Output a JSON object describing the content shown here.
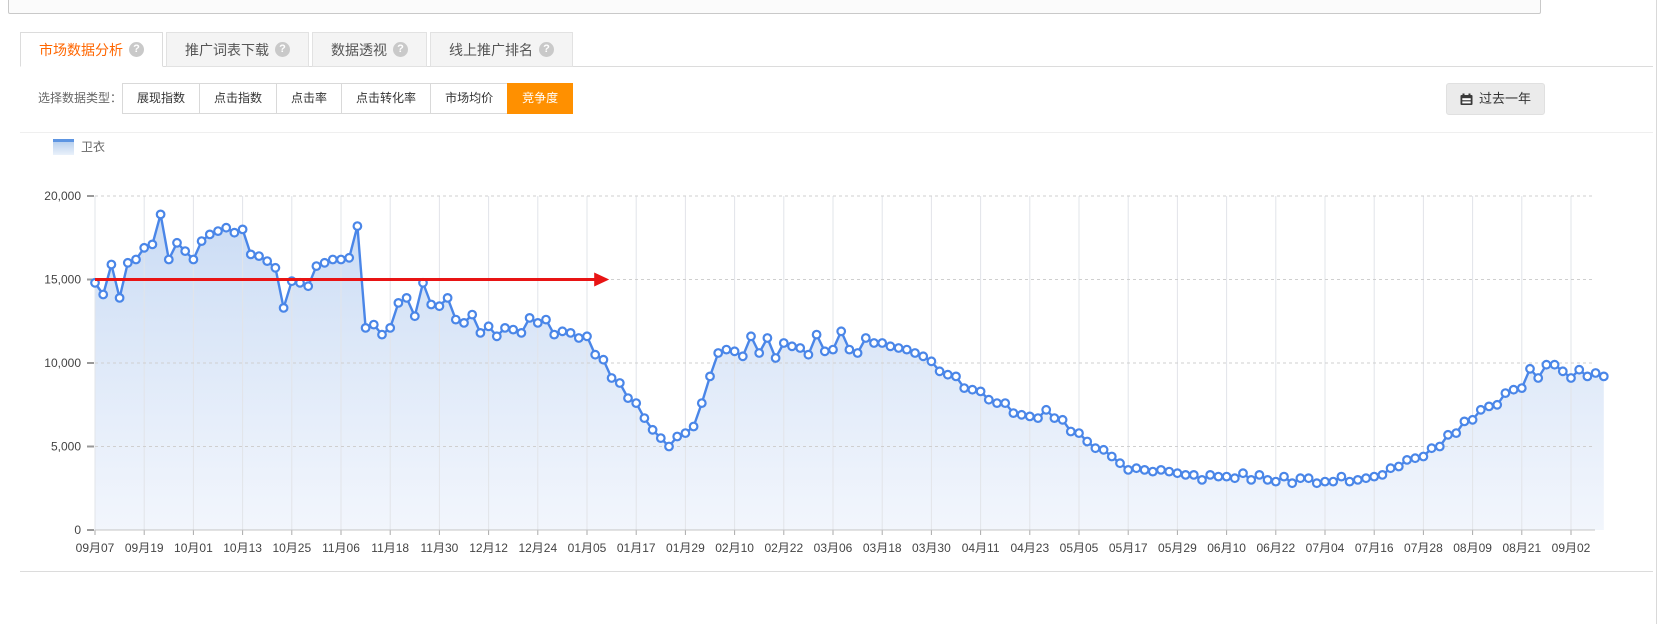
{
  "tabs": [
    {
      "label": "市场数据分析",
      "active": true
    },
    {
      "label": "推广词表下载",
      "active": false
    },
    {
      "label": "数据透视",
      "active": false
    },
    {
      "label": "线上推广排名",
      "active": false
    }
  ],
  "icons": {
    "help": "?"
  },
  "toolbar": {
    "label": "选择数据类型：",
    "buttons": [
      "展现指数",
      "点击指数",
      "点击率",
      "点击转化率",
      "市场均价",
      "竞争度"
    ],
    "active_button": "竞争度",
    "range_button": "过去一年"
  },
  "legend": {
    "series": "卫衣"
  },
  "colors": {
    "tab_active_text": "#ff6600",
    "active_button_bg": "#ff9000",
    "line": "#4a86e8",
    "area_top": "#b4cdf0",
    "area_bottom": "#e7eefa",
    "annotation_red": "#e81414",
    "grid_vertical": "#e2e4e9",
    "grid_horizontal_dashed": "#cfcfcf",
    "axis_text": "#444444"
  },
  "chart_data": {
    "type": "area",
    "title": "",
    "xlabel": "",
    "ylabel": "",
    "ylim": [
      0,
      20000
    ],
    "y_ticks": [
      0,
      5000,
      10000,
      15000,
      20000
    ],
    "y_tick_labels": [
      "0",
      "5,000",
      "10,000",
      "15,000",
      "20,000"
    ],
    "x_tick_labels": [
      "09月07",
      "09月19",
      "10月01",
      "10月13",
      "10月25",
      "11月06",
      "11月18",
      "11月30",
      "12月12",
      "12月24",
      "01月05",
      "01月17",
      "01月29",
      "02月10",
      "02月22",
      "03月06",
      "03月18",
      "03月30",
      "04月11",
      "04月23",
      "05月05",
      "05月17",
      "05月29",
      "06月10",
      "06月22",
      "07月04",
      "07月16",
      "07月28",
      "08月09",
      "08月21",
      "09月02"
    ],
    "points_per_tick": 6,
    "grid": "vertical solid, horizontal dashed",
    "legend_position": "top-left",
    "series": [
      {
        "name": "卫衣",
        "values": [
          14800,
          14100,
          15900,
          13900,
          16000,
          16200,
          16900,
          17100,
          18900,
          16200,
          17200,
          16700,
          16200,
          17300,
          17700,
          17900,
          18100,
          17800,
          18000,
          16500,
          16400,
          16100,
          15700,
          13300,
          14900,
          14800,
          14600,
          15800,
          16000,
          16200,
          16200,
          16300,
          18200,
          12100,
          12300,
          11700,
          12100,
          13600,
          13900,
          12800,
          14800,
          13500,
          13400,
          13900,
          12600,
          12400,
          12900,
          11800,
          12200,
          11600,
          12100,
          12000,
          11800,
          12700,
          12400,
          12600,
          11700,
          11900,
          11800,
          11500,
          11600,
          10500,
          10200,
          9100,
          8800,
          7900,
          7600,
          6700,
          6000,
          5500,
          5000,
          5600,
          5800,
          6200,
          7600,
          9200,
          10600,
          10800,
          10700,
          10400,
          11600,
          10600,
          11500,
          10300,
          11200,
          11000,
          10900,
          10500,
          11700,
          10700,
          10800,
          11900,
          10800,
          10600,
          11500,
          11200,
          11200,
          11000,
          10900,
          10800,
          10600,
          10400,
          10100,
          9500,
          9300,
          9200,
          8500,
          8400,
          8300,
          7800,
          7600,
          7600,
          7000,
          6900,
          6800,
          6700,
          7200,
          6700,
          6600,
          5900,
          5800,
          5300,
          4900,
          4800,
          4400,
          4000,
          3600,
          3700,
          3600,
          3500,
          3600,
          3500,
          3400,
          3300,
          3300,
          3000,
          3300,
          3200,
          3200,
          3100,
          3400,
          3000,
          3300,
          3000,
          2900,
          3200,
          2800,
          3100,
          3100,
          2800,
          2900,
          2900,
          3200,
          2900,
          3000,
          3100,
          3200,
          3300,
          3700,
          3800,
          4200,
          4300,
          4400,
          4900,
          5000,
          5700,
          5800,
          6500,
          6600,
          7200,
          7400,
          7500,
          8200,
          8400,
          8500,
          9650,
          9100,
          9900,
          9900,
          9500,
          9100,
          9600,
          9200,
          9400,
          9200
        ]
      }
    ],
    "annotation": {
      "type": "arrow-line",
      "value": 15000,
      "start_point_index": 0,
      "end_point_index": 61,
      "color": "#e81414"
    }
  }
}
